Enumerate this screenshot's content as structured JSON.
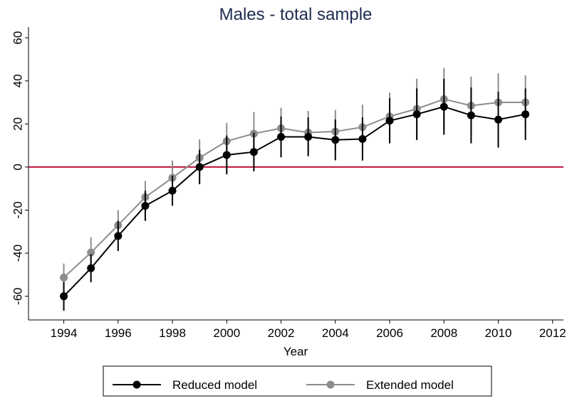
{
  "chart_data": {
    "type": "line",
    "title": "Males - total sample",
    "xlabel": "Year",
    "x": [
      1994,
      1995,
      1996,
      1997,
      1998,
      1999,
      2000,
      2001,
      2002,
      2003,
      2004,
      2005,
      2006,
      2007,
      2008,
      2009,
      2010,
      2011
    ],
    "series": [
      {
        "name": "Reduced model",
        "color": "#000000",
        "values": [
          -60,
          -47,
          -32,
          -18,
          -11,
          0,
          5.6,
          7,
          14,
          14,
          12.6,
          13,
          21.5,
          24.5,
          28,
          24,
          22,
          24.5
        ],
        "errors": [
          6.7,
          6.5,
          7,
          7,
          7,
          8,
          9,
          9,
          9.5,
          9,
          9.5,
          10,
          10.5,
          12,
          13,
          13,
          13,
          12
        ]
      },
      {
        "name": "Extended model",
        "color": "#8c8c8c",
        "values": [
          -51.3,
          -39.7,
          -27,
          -14,
          -5,
          4.3,
          12,
          15.5,
          18,
          16,
          16.5,
          18.5,
          23.5,
          27,
          31.5,
          28.5,
          30,
          30
        ],
        "errors": [
          6.5,
          7,
          7,
          7.5,
          8,
          8.5,
          8.5,
          10,
          9.5,
          10,
          10,
          10.5,
          11,
          14,
          14.5,
          13.5,
          13.5,
          12.5
        ]
      }
    ],
    "hline": 0,
    "hline_color": "#c0103a",
    "xlim": [
      1992.7,
      2012.4
    ],
    "ylim": [
      -71,
      65
    ],
    "xticks": [
      1994,
      1996,
      1998,
      2000,
      2002,
      2004,
      2006,
      2008,
      2010,
      2012
    ],
    "yticks": [
      -60,
      -40,
      -20,
      0,
      20,
      40,
      60
    ],
    "legend": "bottom"
  }
}
